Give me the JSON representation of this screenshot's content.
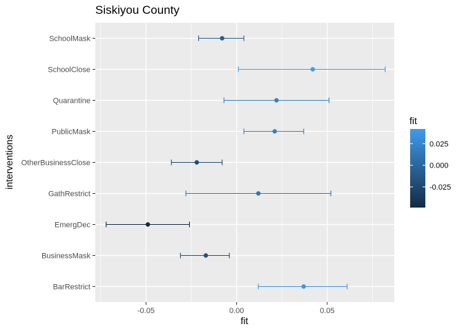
{
  "chart_data": {
    "type": "errorbar",
    "title": "Siskiyou County",
    "xlabel": "fit",
    "ylabel": "interventions",
    "xlim": [
      -0.078,
      0.087
    ],
    "xticks": [
      -0.05,
      0.0,
      0.05
    ],
    "xtick_labels": [
      "-0.05",
      "0.00",
      "0.05"
    ],
    "grid": true,
    "categories": [
      "SchoolMask",
      "SchoolClose",
      "Quarantine",
      "PublicMask",
      "OtherBusinessClose",
      "GathRestrict",
      "EmergDec",
      "BusinessMask",
      "BarRestrict"
    ],
    "fit": [
      -0.008,
      0.042,
      0.022,
      0.021,
      -0.022,
      0.012,
      -0.049,
      -0.017,
      0.037
    ],
    "lower": [
      -0.021,
      0.001,
      -0.007,
      0.004,
      -0.036,
      -0.028,
      -0.072,
      -0.031,
      0.012
    ],
    "upper": [
      0.004,
      0.082,
      0.051,
      0.037,
      -0.008,
      0.052,
      -0.026,
      -0.004,
      0.061
    ],
    "legend": {
      "title": "fit",
      "position": "right",
      "range": [
        -0.049,
        0.042
      ],
      "ticks": [
        0.025,
        0.0,
        -0.025
      ],
      "tick_labels": [
        "0.025",
        "0.000",
        "-0.025"
      ],
      "color_low": "#132B43",
      "color_high": "#3F9BEB"
    },
    "panel_background": "#EBEBEB",
    "grid_color": "#FFFFFF"
  }
}
